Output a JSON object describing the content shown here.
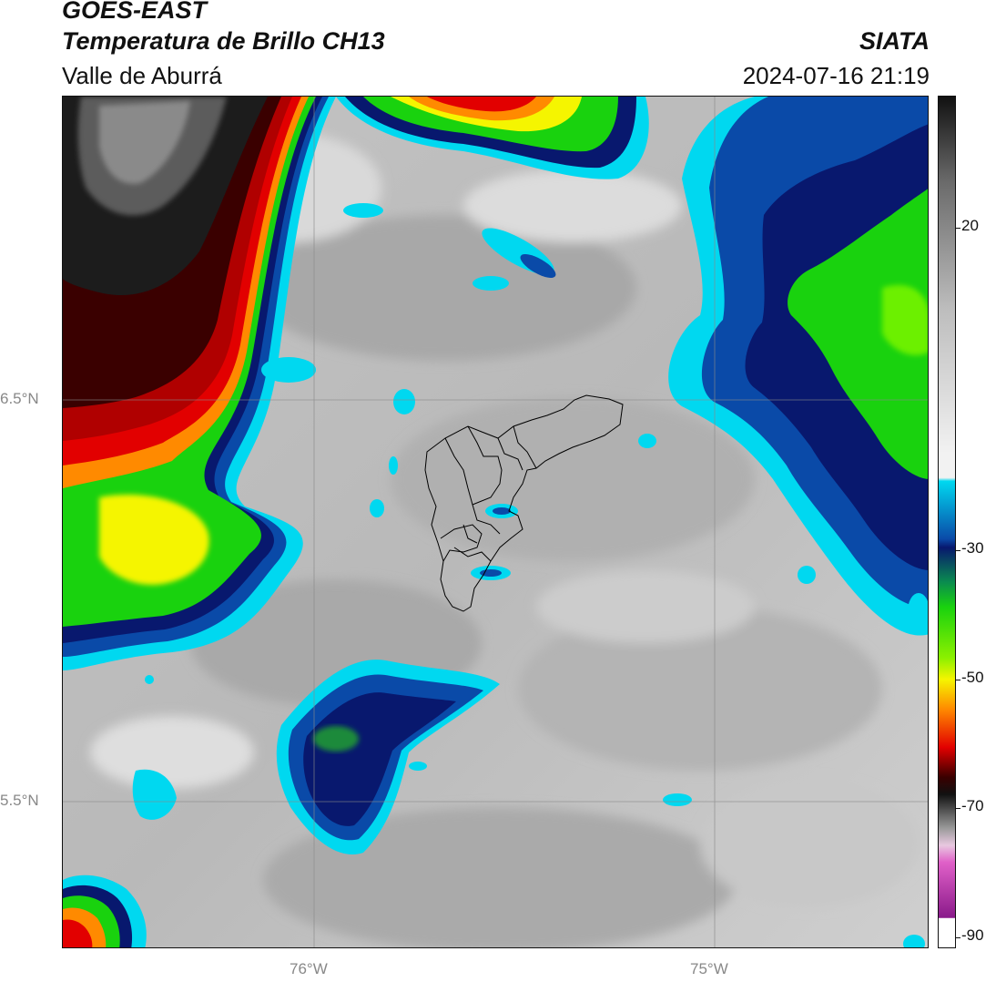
{
  "header": {
    "satellite": "GOES-EAST",
    "product": "Temperatura de Brillo CH13",
    "region": "Valle de Aburrá",
    "organization": "SIATA",
    "datetime": "2024-07-16 21:19"
  },
  "map": {
    "lat_labels": [
      "6.5°N",
      "5.5°N"
    ],
    "lon_labels": [
      "76°W",
      "75°W"
    ],
    "gridlines": true,
    "outline": "Valle de Aburrá municipalities"
  },
  "colorbar": {
    "ticks": [
      "20",
      "-30",
      "-50",
      "-70",
      "-90"
    ],
    "range": [
      -90,
      30
    ],
    "colors": {
      "warm_top": "#111111",
      "mid_gray": "#bdbdbd",
      "light": "#f2f2f2",
      "cyan": "#00d8f0",
      "blue": "#0a4aa8",
      "navy": "#08186e",
      "green": "#19d20e",
      "yellow": "#f5f500",
      "orange": "#ff8a00",
      "red": "#e20000",
      "dark_red": "#3a0000",
      "pink": "#e060c8",
      "purple": "#8a1a8a",
      "white": "#ffffff"
    }
  }
}
